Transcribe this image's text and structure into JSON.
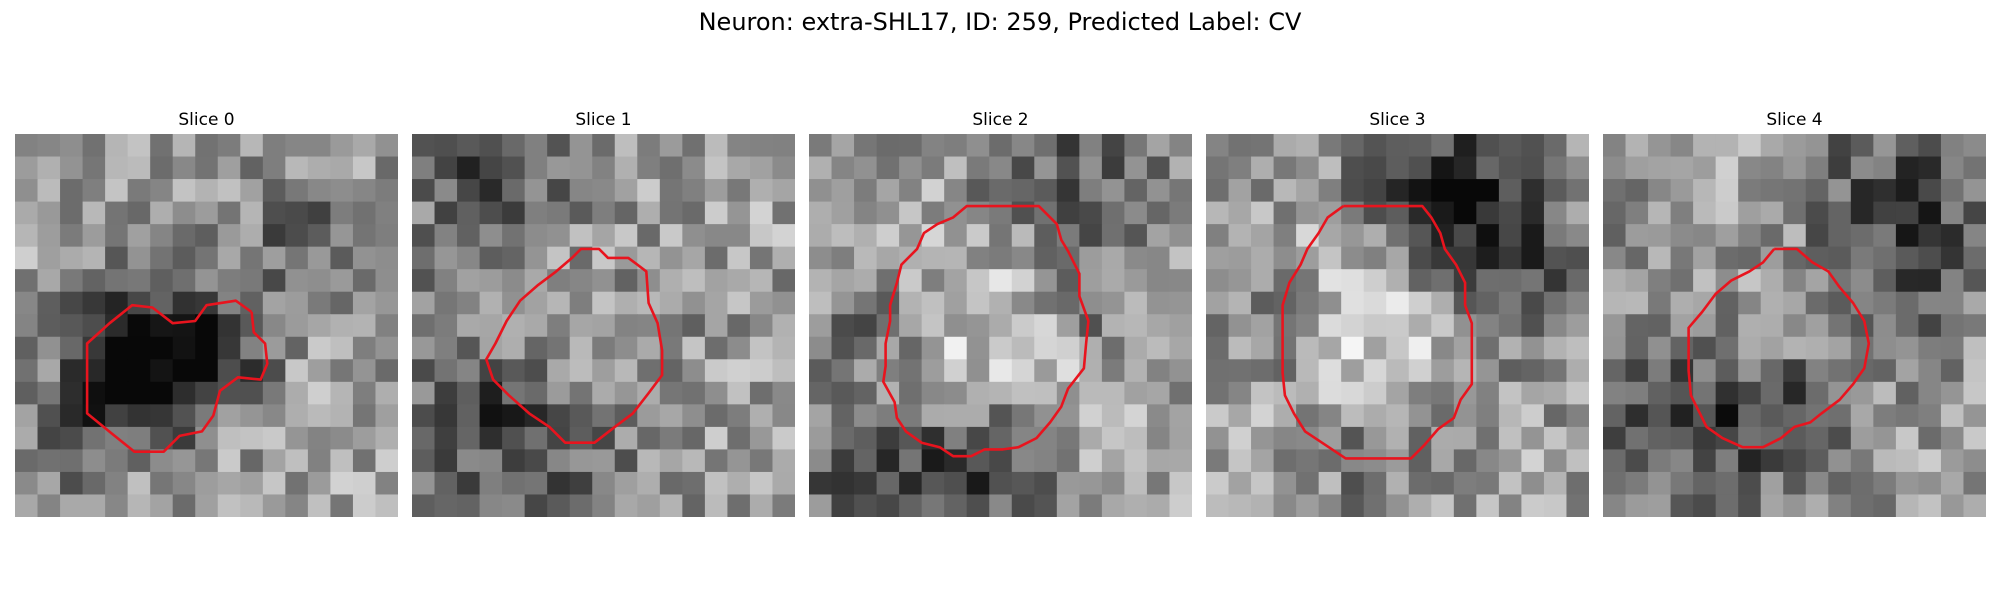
{
  "figure": {
    "title": "Neuron: extra-SHL17, ID: 259, Predicted Label: CV"
  },
  "colors": {
    "contour": "#e8141e",
    "background": "#ffffff"
  },
  "panels": [
    {
      "title": "Slice 0",
      "contour": [
        [
          10.5,
          7.9
        ],
        [
          9.8,
          7.4
        ],
        [
          8.5,
          7.6
        ],
        [
          8,
          8.3
        ],
        [
          7,
          8.4
        ],
        [
          6.1,
          7.7
        ],
        [
          5.2,
          7.6
        ],
        [
          4.2,
          8.4
        ],
        [
          3.2,
          9.3
        ],
        [
          3.2,
          11.0
        ],
        [
          3.2,
          12.4
        ],
        [
          4.3,
          13.3
        ],
        [
          5.3,
          14.1
        ],
        [
          6.6,
          14.1
        ],
        [
          7.3,
          13.4
        ],
        [
          8.3,
          13.2
        ],
        [
          8.8,
          12.5
        ],
        [
          9.1,
          11.4
        ],
        [
          9.9,
          10.8
        ],
        [
          10.9,
          10.9
        ],
        [
          11.2,
          10.2
        ],
        [
          11.1,
          9.3
        ],
        [
          10.6,
          8.8
        ],
        [
          10.5,
          7.9
        ]
      ],
      "dark_spots": [
        [
          5.5,
          10.0,
          2.4,
          0.38
        ],
        [
          7.5,
          9.5,
          2.2,
          0.3
        ],
        [
          9.2,
          9.6,
          1.4,
          0.2
        ],
        [
          4.5,
          11.5,
          2.0,
          0.18
        ],
        [
          12.7,
          4.7,
          2.2,
          0.22
        ],
        [
          0.5,
          15.5,
          2.5,
          0.15
        ]
      ],
      "bright_spots": [],
      "seed": 11
    },
    {
      "title": "Slice 1",
      "contour": [
        [
          7.1,
          5.5
        ],
        [
          7.5,
          5.1
        ],
        [
          8.3,
          5.1
        ],
        [
          8.7,
          5.5
        ],
        [
          9.6,
          5.5
        ],
        [
          10.4,
          6.1
        ],
        [
          10.5,
          7.5
        ],
        [
          10.9,
          8.4
        ],
        [
          11.1,
          9.6
        ],
        [
          11.1,
          10.7
        ],
        [
          10.5,
          11.5
        ],
        [
          9.8,
          12.4
        ],
        [
          9.0,
          13.0
        ],
        [
          8.1,
          13.7
        ],
        [
          6.8,
          13.7
        ],
        [
          6.1,
          13.0
        ],
        [
          5.2,
          12.4
        ],
        [
          4.3,
          11.6
        ],
        [
          3.6,
          10.9
        ],
        [
          3.3,
          10.0
        ],
        [
          3.7,
          9.3
        ],
        [
          4.2,
          8.3
        ],
        [
          4.8,
          7.4
        ],
        [
          5.6,
          6.7
        ],
        [
          6.4,
          6.1
        ],
        [
          7.1,
          5.5
        ]
      ],
      "dark_spots": [
        [
          3.5,
          1.0,
          3.0,
          0.32
        ],
        [
          6.0,
          13.5,
          3.2,
          0.28
        ],
        [
          3.0,
          12.0,
          2.2,
          0.22
        ],
        [
          10.5,
          8.0,
          2.0,
          0.15
        ],
        [
          0.5,
          8.0,
          1.5,
          0.1
        ]
      ],
      "bright_spots": [
        [
          7.4,
          9.6,
          2.6,
          0.22
        ]
      ],
      "seed": 23
    },
    {
      "title": "Slice 2",
      "contour": [
        [
          8.5,
          3.2
        ],
        [
          10.2,
          3.2
        ],
        [
          11.0,
          4.0
        ],
        [
          11.2,
          4.7
        ],
        [
          11.5,
          5.2
        ],
        [
          12.0,
          6.2
        ],
        [
          12.0,
          7.2
        ],
        [
          12.4,
          8.3
        ],
        [
          12.3,
          9.3
        ],
        [
          12.2,
          10.4
        ],
        [
          11.5,
          11.3
        ],
        [
          11.2,
          12.1
        ],
        [
          10.7,
          12.8
        ],
        [
          10.1,
          13.5
        ],
        [
          9.3,
          13.9
        ],
        [
          8.6,
          14.0
        ],
        [
          7.8,
          14.0
        ],
        [
          7.2,
          14.3
        ],
        [
          6.4,
          14.3
        ],
        [
          5.8,
          13.9
        ],
        [
          5.0,
          13.7
        ],
        [
          4.3,
          13.2
        ],
        [
          3.9,
          12.6
        ],
        [
          3.8,
          11.9
        ],
        [
          3.3,
          11.0
        ],
        [
          3.4,
          10.3
        ],
        [
          3.4,
          9.3
        ],
        [
          3.6,
          8.3
        ],
        [
          3.6,
          7.6
        ],
        [
          3.9,
          6.6
        ],
        [
          4.1,
          5.8
        ],
        [
          4.8,
          5.1
        ],
        [
          5.1,
          4.4
        ],
        [
          5.7,
          4.0
        ],
        [
          6.4,
          3.7
        ],
        [
          7.0,
          3.2
        ],
        [
          8.5,
          3.2
        ]
      ],
      "dark_spots": [
        [
          4.0,
          16.0,
          3.5,
          0.35
        ],
        [
          11.5,
          2.0,
          2.8,
          0.28
        ],
        [
          12.5,
          7.5,
          1.5,
          0.22
        ],
        [
          3.0,
          8.0,
          1.6,
          0.22
        ],
        [
          8.0,
          14.5,
          2.0,
          0.2
        ],
        [
          0.5,
          3.0,
          1.5,
          0.15
        ]
      ],
      "bright_spots": [
        [
          7.8,
          9.0,
          3.5,
          0.2
        ]
      ],
      "seed": 37
    },
    {
      "title": "Slice 3",
      "contour": [
        [
          6.1,
          3.2
        ],
        [
          9.6,
          3.2
        ],
        [
          10.0,
          3.7
        ],
        [
          10.4,
          4.4
        ],
        [
          10.6,
          5.1
        ],
        [
          11.1,
          5.8
        ],
        [
          11.5,
          6.6
        ],
        [
          11.5,
          7.6
        ],
        [
          11.8,
          8.4
        ],
        [
          11.8,
          9.3
        ],
        [
          11.8,
          10.2
        ],
        [
          11.8,
          11.1
        ],
        [
          11.3,
          11.8
        ],
        [
          11.0,
          12.6
        ],
        [
          10.3,
          13.1
        ],
        [
          9.7,
          13.8
        ],
        [
          9.1,
          14.4
        ],
        [
          7.6,
          14.4
        ],
        [
          6.2,
          14.4
        ],
        [
          5.3,
          13.8
        ],
        [
          4.4,
          13.2
        ],
        [
          3.9,
          12.4
        ],
        [
          3.5,
          11.6
        ],
        [
          3.4,
          10.6
        ],
        [
          3.4,
          9.6
        ],
        [
          3.4,
          8.6
        ],
        [
          3.4,
          7.6
        ],
        [
          3.7,
          6.6
        ],
        [
          4.2,
          5.8
        ],
        [
          4.5,
          5.1
        ],
        [
          5.0,
          4.4
        ],
        [
          5.4,
          3.7
        ],
        [
          6.1,
          3.2
        ]
      ],
      "dark_spots": [
        [
          11.5,
          3.0,
          2.6,
          0.38
        ],
        [
          14.0,
          6.5,
          2.5,
          0.25
        ],
        [
          3.5,
          8.5,
          1.6,
          0.2
        ],
        [
          9.0,
          2.5,
          2.0,
          0.2
        ],
        [
          7.5,
          14.2,
          2.0,
          0.18
        ]
      ],
      "bright_spots": [
        [
          7.5,
          8.5,
          2.8,
          0.22
        ]
      ],
      "seed": 53
    },
    {
      "title": "Slice 4",
      "contour": [
        [
          7.6,
          5.1
        ],
        [
          8.6,
          5.1
        ],
        [
          9.3,
          5.7
        ],
        [
          10.0,
          6.1
        ],
        [
          10.5,
          6.8
        ],
        [
          11.1,
          7.5
        ],
        [
          11.6,
          8.3
        ],
        [
          11.8,
          9.3
        ],
        [
          11.6,
          10.4
        ],
        [
          11.1,
          11.1
        ],
        [
          10.5,
          11.8
        ],
        [
          9.7,
          12.4
        ],
        [
          9.2,
          12.8
        ],
        [
          8.5,
          13.0
        ],
        [
          7.9,
          13.5
        ],
        [
          7.1,
          13.9
        ],
        [
          6.2,
          13.9
        ],
        [
          5.3,
          13.5
        ],
        [
          4.6,
          13.0
        ],
        [
          4.3,
          12.4
        ],
        [
          3.9,
          11.6
        ],
        [
          3.8,
          10.5
        ],
        [
          3.8,
          9.5
        ],
        [
          3.8,
          8.6
        ],
        [
          4.4,
          7.9
        ],
        [
          5.0,
          7.1
        ],
        [
          5.7,
          6.5
        ],
        [
          6.5,
          6.1
        ],
        [
          7.1,
          5.7
        ],
        [
          7.6,
          5.1
        ]
      ],
      "dark_spots": [
        [
          13.0,
          3.0,
          2.8,
          0.35
        ],
        [
          14.5,
          7.0,
          1.8,
          0.22
        ],
        [
          3.0,
          12.5,
          2.8,
          0.25
        ],
        [
          6.5,
          13.0,
          2.4,
          0.24
        ],
        [
          9.5,
          11.0,
          1.8,
          0.18
        ],
        [
          1.5,
          4.0,
          1.5,
          0.12
        ]
      ],
      "bright_spots": [
        [
          8.0,
          9.0,
          1.8,
          0.1
        ]
      ],
      "seed": 71
    }
  ]
}
